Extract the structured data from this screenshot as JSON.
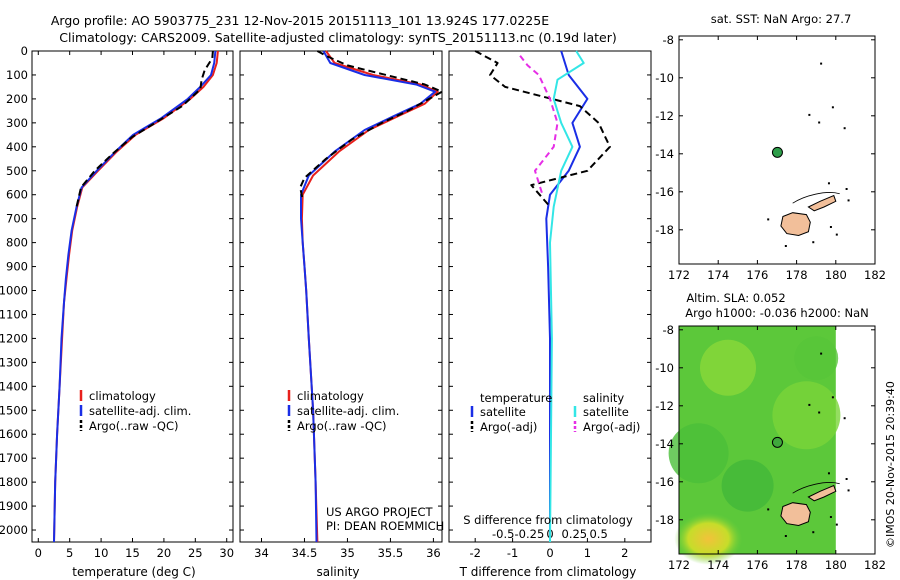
{
  "header": {
    "line1": "Argo profile: AO 5903775_231 12-Nov-2015 20151113_101 13.924S 177.0225E",
    "line2": "Climatology: CARS2009. Satellite-adjusted climatology: synTS_20151113.nc (0.19d later)"
  },
  "colors": {
    "climatology": "#e8201c",
    "satellite": "#1a2ee6",
    "argo": "#000000",
    "sat_salinity": "#33e6e6",
    "argo_salinity_adj": "#e62ee6",
    "marker": "#2e9e4a",
    "land": "#f2bf9a"
  },
  "chart_data": [
    {
      "type": "line",
      "id": "temperature",
      "xlabel": "temperature (deg C)",
      "xlim": [
        -1,
        31
      ],
      "ylim": [
        0,
        2050
      ],
      "yticks": [
        0,
        100,
        200,
        300,
        400,
        500,
        600,
        700,
        800,
        900,
        1000,
        1100,
        1200,
        1300,
        1400,
        1500,
        1600,
        1700,
        1800,
        1900,
        2000
      ],
      "xticks": [
        0,
        5,
        10,
        15,
        20,
        25,
        30
      ],
      "legend": [
        "climatology",
        "satellite-adj. clim.",
        "Argo(..raw -QC)"
      ],
      "series": [
        {
          "name": "climatology",
          "points": [
            [
              28.6,
              0
            ],
            [
              28.4,
              50
            ],
            [
              27.8,
              100
            ],
            [
              26.3,
              150
            ],
            [
              24.2,
              200
            ],
            [
              20.0,
              280
            ],
            [
              15.5,
              350
            ],
            [
              12.5,
              420
            ],
            [
              9.5,
              500
            ],
            [
              7.0,
              570
            ],
            [
              6.2,
              650
            ],
            [
              5.4,
              750
            ],
            [
              4.9,
              850
            ],
            [
              4.5,
              950
            ],
            [
              4.1,
              1050
            ],
            [
              3.8,
              1200
            ],
            [
              3.4,
              1400
            ],
            [
              3.0,
              1600
            ],
            [
              2.7,
              1800
            ],
            [
              2.5,
              2050
            ]
          ]
        },
        {
          "name": "satellite",
          "points": [
            [
              28.2,
              0
            ],
            [
              28.0,
              50
            ],
            [
              27.5,
              100
            ],
            [
              25.8,
              150
            ],
            [
              23.8,
              200
            ],
            [
              19.6,
              280
            ],
            [
              15.1,
              350
            ],
            [
              12.3,
              420
            ],
            [
              9.3,
              500
            ],
            [
              6.9,
              570
            ],
            [
              6.1,
              650
            ],
            [
              5.3,
              750
            ],
            [
              4.8,
              850
            ],
            [
              4.4,
              950
            ],
            [
              4.1,
              1050
            ],
            [
              3.7,
              1200
            ],
            [
              3.4,
              1400
            ],
            [
              3.0,
              1600
            ],
            [
              2.7,
              1800
            ],
            [
              2.5,
              2050
            ]
          ]
        },
        {
          "name": "argo",
          "points": [
            [
              27.8,
              0
            ],
            [
              27.7,
              30
            ],
            [
              26.5,
              80
            ],
            [
              26.0,
              120
            ],
            [
              25.8,
              160
            ],
            [
              22.9,
              230
            ],
            [
              18.6,
              300
            ],
            [
              14.9,
              360
            ],
            [
              11.8,
              430
            ],
            [
              9.0,
              500
            ],
            [
              6.8,
              570
            ],
            [
              6.1,
              650
            ]
          ]
        }
      ]
    },
    {
      "type": "line",
      "id": "salinity",
      "xlabel": "salinity",
      "xlim": [
        33.75,
        36.1
      ],
      "ylim": [
        0,
        2050
      ],
      "xticks": [
        34,
        34.5,
        35,
        35.5,
        36
      ],
      "legend": [
        "climatology",
        "satellite-adj. clim.",
        "Argo(..raw -QC)"
      ],
      "series": [
        {
          "name": "climatology",
          "points": [
            [
              34.75,
              0
            ],
            [
              34.85,
              50
            ],
            [
              35.3,
              100
            ],
            [
              35.85,
              140
            ],
            [
              36.05,
              170
            ],
            [
              35.9,
              220
            ],
            [
              35.6,
              270
            ],
            [
              35.25,
              330
            ],
            [
              34.9,
              420
            ],
            [
              34.6,
              520
            ],
            [
              34.48,
              600
            ],
            [
              34.47,
              700
            ],
            [
              34.48,
              800
            ],
            [
              34.5,
              900
            ],
            [
              34.52,
              1000
            ],
            [
              34.55,
              1200
            ],
            [
              34.6,
              1500
            ],
            [
              34.63,
              1800
            ],
            [
              34.65,
              2050
            ]
          ]
        },
        {
          "name": "satellite",
          "points": [
            [
              34.72,
              0
            ],
            [
              34.8,
              50
            ],
            [
              35.2,
              100
            ],
            [
              35.8,
              140
            ],
            [
              36.02,
              170
            ],
            [
              35.85,
              220
            ],
            [
              35.55,
              270
            ],
            [
              35.2,
              330
            ],
            [
              34.85,
              420
            ],
            [
              34.55,
              520
            ],
            [
              34.46,
              600
            ],
            [
              34.46,
              700
            ],
            [
              34.48,
              800
            ],
            [
              34.5,
              900
            ],
            [
              34.52,
              1000
            ],
            [
              34.55,
              1200
            ],
            [
              34.6,
              1500
            ],
            [
              34.63,
              1800
            ],
            [
              34.64,
              2050
            ]
          ]
        },
        {
          "name": "argo",
          "points": [
            [
              34.65,
              0
            ],
            [
              34.75,
              20
            ],
            [
              35.0,
              60
            ],
            [
              35.45,
              100
            ],
            [
              35.9,
              140
            ],
            [
              36.1,
              170
            ],
            [
              35.95,
              200
            ],
            [
              35.7,
              250
            ],
            [
              35.4,
              300
            ],
            [
              35.05,
              370
            ],
            [
              34.75,
              450
            ],
            [
              34.5,
              530
            ],
            [
              34.45,
              570
            ],
            [
              34.48,
              620
            ]
          ]
        }
      ]
    },
    {
      "type": "line",
      "id": "difference",
      "xlabel_bottom": "T difference from climatology",
      "xlabel_top": "S difference from climatology",
      "xlim": [
        -2.7,
        2.7
      ],
      "ylim": [
        0,
        2050
      ],
      "xticks_T": [
        -2,
        -1,
        0,
        1,
        2
      ],
      "xticks_S": [
        "-0.5",
        "-0.25",
        "0",
        "0.25",
        "0.5"
      ],
      "legend_temperature_title": "temperature",
      "legend_salinity_title": "salinity",
      "legend": [
        "satellite",
        "Argo(-adj)",
        "satellite",
        "Argo(-adj)"
      ],
      "series": [
        {
          "name": "T satellite",
          "points": [
            [
              0.3,
              0
            ],
            [
              0.5,
              100
            ],
            [
              1.0,
              200
            ],
            [
              0.6,
              300
            ],
            [
              0.8,
              400
            ],
            [
              0.5,
              500
            ],
            [
              0.0,
              600
            ],
            [
              -0.1,
              700
            ],
            [
              -0.05,
              900
            ],
            [
              0,
              1200
            ],
            [
              0,
              2050
            ]
          ]
        },
        {
          "name": "T Argo(-adj)",
          "points": [
            [
              -2.0,
              0
            ],
            [
              -1.4,
              50
            ],
            [
              -1.6,
              100
            ],
            [
              -1.2,
              150
            ],
            [
              0.8,
              230
            ],
            [
              1.3,
              300
            ],
            [
              1.6,
              400
            ],
            [
              1.0,
              500
            ],
            [
              -0.5,
              560
            ],
            [
              0.0,
              650
            ]
          ]
        },
        {
          "name": "S satellite",
          "points": [
            [
              0.7,
              0
            ],
            [
              0.9,
              50
            ],
            [
              0.2,
              120
            ],
            [
              0.1,
              200
            ],
            [
              0.3,
              300
            ],
            [
              0.6,
              400
            ],
            [
              0.3,
              500
            ],
            [
              0.1,
              650
            ],
            [
              0,
              800
            ],
            [
              0.05,
              1200
            ],
            [
              0,
              2050
            ]
          ]
        },
        {
          "name": "S Argo(-adj)",
          "points": [
            [
              -0.8,
              20
            ],
            [
              -0.6,
              60
            ],
            [
              -0.3,
              100
            ],
            [
              0.0,
              200
            ],
            [
              0.2,
              300
            ],
            [
              0.1,
              400
            ],
            [
              -0.4,
              500
            ],
            [
              -0.2,
              600
            ]
          ]
        }
      ]
    },
    {
      "type": "scatter",
      "id": "sst_map",
      "title": "sat. SST: NaN Argo: 27.7",
      "xlim": [
        172,
        182
      ],
      "ylim": [
        -19.8,
        -7.8
      ],
      "xticks": [
        172,
        174,
        176,
        178,
        180,
        182
      ],
      "yticks": [
        -8,
        -10,
        -12,
        -14,
        -16,
        -18
      ],
      "ytick_labels": [
        "-8",
        "-10",
        "-12",
        "-14",
        "-16",
        "-18"
      ],
      "marker": [
        177.0225,
        -13.924
      ]
    },
    {
      "type": "heatmap",
      "id": "sla_map",
      "title_line1": "Altim. SLA: 0.052",
      "title_line2": "Argo h1000: -0.036 h2000: NaN",
      "xlim": [
        172,
        182
      ],
      "ylim": [
        -19.8,
        -7.8
      ],
      "data_xlim": [
        172,
        180
      ],
      "xticks": [
        172,
        174,
        176,
        178,
        180,
        182
      ],
      "yticks": [
        -8,
        -10,
        -12,
        -14,
        -16,
        -18
      ],
      "ytick_labels": [
        "-8",
        "-10",
        "-12",
        "-14",
        "-16",
        "-18"
      ],
      "marker": [
        177.0225,
        -13.924
      ]
    }
  ],
  "footer": {
    "project_line1": "US ARGO PROJECT",
    "project_line2": "PI: DEAN ROEMMICH",
    "credit": "©IMOS 20-Nov-2015 20:39:40"
  }
}
